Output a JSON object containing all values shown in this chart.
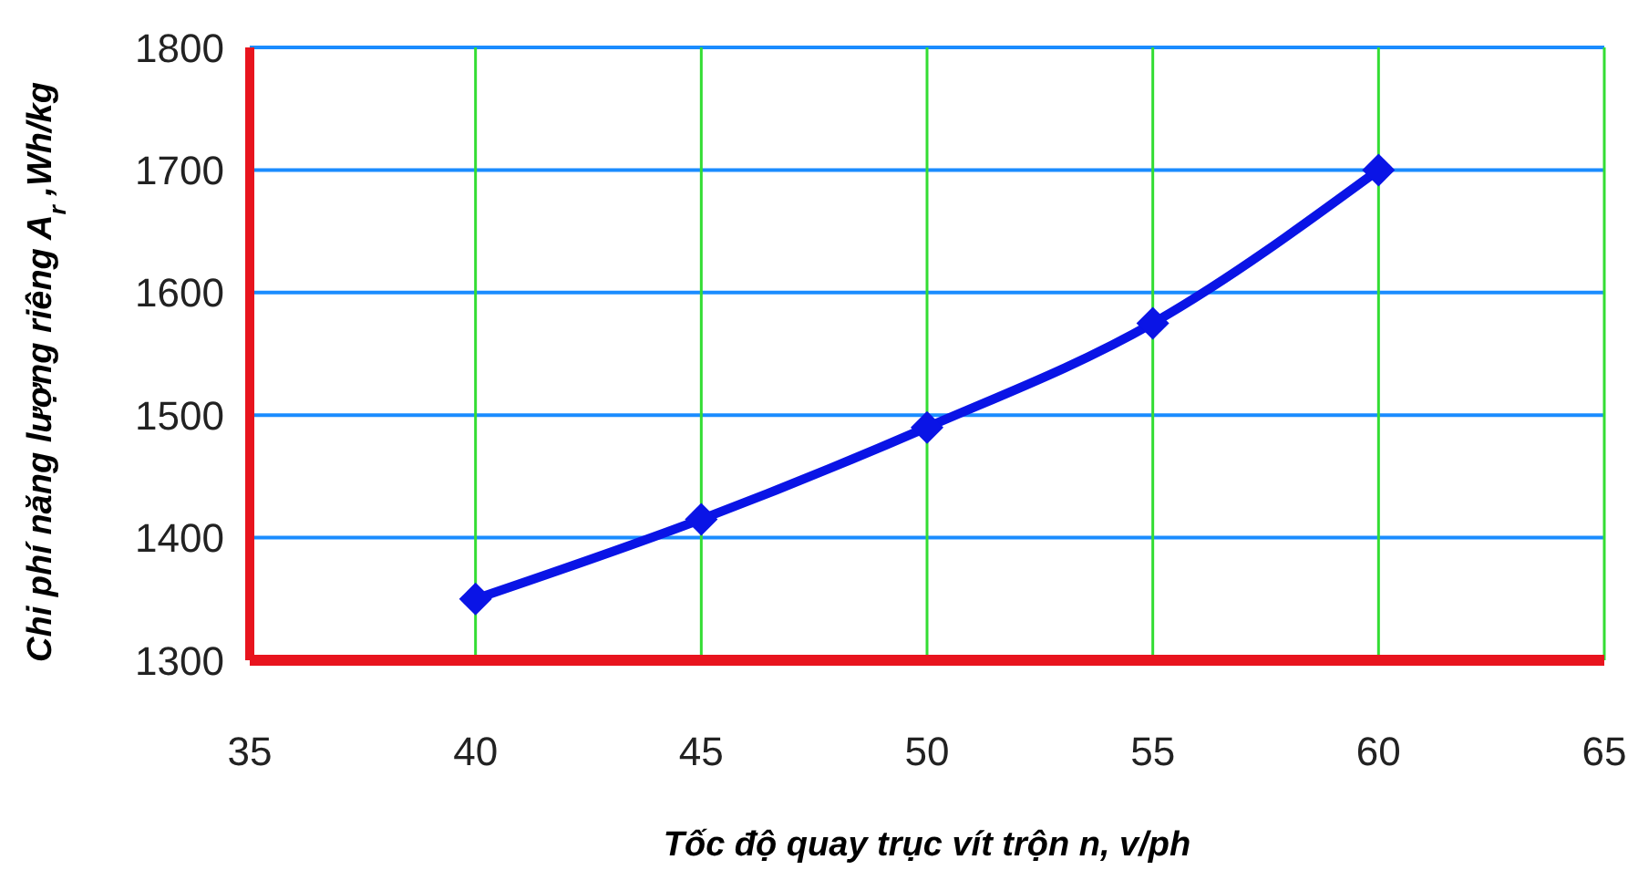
{
  "chart_data": {
    "type": "line",
    "xlabel": "Tốc độ quay trục vít trộn n, v/ph",
    "ylabel": "Chi phí năng lượng riêng A$_{r}$ ,Wh/kg",
    "x": [
      40,
      45,
      50,
      55,
      60
    ],
    "series": [
      {
        "color": "#0a14e6",
        "values": [
          1350,
          1415,
          1490,
          1575,
          1700
        ]
      }
    ],
    "xlim": [
      35,
      65
    ],
    "xticks": [
      35,
      40,
      45,
      50,
      55,
      60,
      65
    ],
    "ylim": [
      1300,
      1800
    ],
    "yticks": [
      1300,
      1400,
      1500,
      1600,
      1700,
      1800
    ],
    "grid": true,
    "marker": "diamond",
    "line_style": "solid"
  }
}
